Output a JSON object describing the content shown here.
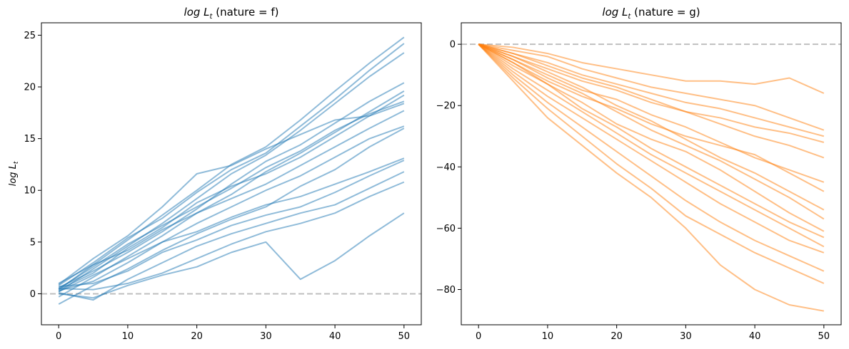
{
  "chart_data": [
    {
      "type": "line",
      "title_math": "log L",
      "title_sub": "t",
      "title_suffix": " (nature = f)",
      "ylabel_math": "log L",
      "ylabel_sub": "t",
      "xlim": [
        -2.5,
        52.5
      ],
      "ylim": [
        -3.0,
        26.2
      ],
      "xticks": [
        0,
        10,
        20,
        30,
        40,
        50
      ],
      "yticks": [
        0,
        5,
        10,
        15,
        20,
        25
      ],
      "reference_line_y": 0,
      "color": "#1f77b4",
      "series": [
        {
          "x": [
            0,
            5,
            10,
            15,
            20,
            25,
            30,
            35,
            40,
            45,
            50
          ],
          "values": [
            0.4,
            2.8,
            5.2,
            7.6,
            10.0,
            12.5,
            14.2,
            16.8,
            19.6,
            22.3,
            24.8
          ]
        },
        {
          "x": [
            0,
            5,
            10,
            15,
            20,
            25,
            30,
            35,
            40,
            45,
            50
          ],
          "values": [
            0.8,
            3.0,
            5.4,
            7.3,
            9.8,
            12.0,
            13.6,
            16.2,
            18.8,
            21.6,
            24.2
          ]
        },
        {
          "x": [
            0,
            5,
            10,
            15,
            20,
            25,
            30,
            35,
            40,
            45,
            50
          ],
          "values": [
            0.2,
            2.4,
            4.6,
            6.8,
            9.2,
            11.6,
            13.4,
            15.8,
            18.4,
            21.0,
            23.3
          ]
        },
        {
          "x": [
            0,
            5,
            10,
            15,
            20,
            25,
            30,
            35,
            40,
            45,
            50
          ],
          "values": [
            0.6,
            2.2,
            4.0,
            6.0,
            8.2,
            10.6,
            12.8,
            14.4,
            16.5,
            18.6,
            20.4
          ]
        },
        {
          "x": [
            0,
            5,
            10,
            15,
            20,
            25,
            30,
            35,
            40,
            45,
            50
          ],
          "values": [
            -0.3,
            1.6,
            3.6,
            5.6,
            7.8,
            9.6,
            11.8,
            13.6,
            15.6,
            17.6,
            19.6
          ]
        },
        {
          "x": [
            0,
            5,
            10,
            15,
            20,
            25,
            30,
            35,
            40,
            45,
            50
          ],
          "values": [
            0.5,
            2.6,
            4.8,
            6.6,
            8.4,
            10.2,
            12.2,
            13.8,
            15.8,
            17.4,
            18.6
          ]
        },
        {
          "x": [
            0,
            5,
            10,
            15,
            20,
            25,
            30,
            35,
            40,
            45,
            50
          ],
          "values": [
            1.0,
            2.8,
            4.2,
            6.2,
            7.8,
            9.2,
            10.6,
            12.4,
            14.2,
            16.0,
            17.7
          ]
        },
        {
          "x": [
            0,
            5,
            10,
            15,
            20,
            25,
            30,
            35,
            40,
            45,
            50
          ],
          "values": [
            0.3,
            1.2,
            3.0,
            5.0,
            6.8,
            8.4,
            10.0,
            11.4,
            13.2,
            15.0,
            16.2
          ]
        },
        {
          "x": [
            0,
            5,
            10,
            15,
            20,
            25,
            30,
            35,
            40,
            45,
            50
          ],
          "values": [
            -1.0,
            0.8,
            2.4,
            4.2,
            5.8,
            7.2,
            8.4,
            10.4,
            12.0,
            14.2,
            16.0
          ]
        },
        {
          "x": [
            0,
            5,
            10,
            15,
            20,
            25,
            30,
            35,
            40,
            45,
            50
          ],
          "values": [
            0.2,
            1.8,
            3.4,
            5.0,
            6.0,
            7.4,
            8.6,
            9.4,
            10.6,
            11.8,
            13.1
          ]
        },
        {
          "x": [
            0,
            5,
            10,
            15,
            20,
            25,
            30,
            35,
            40,
            45,
            50
          ],
          "values": [
            0.7,
            1.0,
            2.2,
            4.0,
            5.2,
            6.6,
            7.6,
            8.4,
            9.8,
            11.4,
            12.9
          ]
        },
        {
          "x": [
            0,
            5,
            10,
            15,
            20,
            25,
            30,
            35,
            40,
            45,
            50
          ],
          "values": [
            0.1,
            -0.6,
            1.4,
            3.0,
            4.6,
            5.8,
            6.8,
            7.8,
            8.6,
            10.2,
            11.8
          ]
        },
        {
          "x": [
            0,
            5,
            10,
            15,
            20,
            25,
            30,
            35,
            40,
            45,
            50
          ],
          "values": [
            0.5,
            0.4,
            1.0,
            2.0,
            3.4,
            4.8,
            6.0,
            6.8,
            7.8,
            9.4,
            10.8
          ]
        },
        {
          "x": [
            0,
            5,
            10,
            15,
            20,
            25,
            30,
            35,
            40,
            45,
            50
          ],
          "values": [
            0.0,
            -0.4,
            0.8,
            1.8,
            2.6,
            4.0,
            5.0,
            1.4,
            3.2,
            5.6,
            7.8
          ]
        },
        {
          "x": [
            0,
            5,
            10,
            15,
            20,
            25,
            30,
            35,
            40,
            45,
            50
          ],
          "values": [
            0.4,
            2.0,
            4.4,
            6.4,
            8.8,
            10.4,
            11.6,
            13.2,
            15.2,
            17.2,
            19.2
          ]
        },
        {
          "x": [
            0,
            5,
            10,
            15,
            20,
            25,
            30,
            35,
            40,
            45,
            50
          ],
          "values": [
            0.9,
            3.4,
            5.6,
            8.4,
            11.6,
            12.4,
            14.0,
            15.4,
            16.8,
            17.2,
            18.4
          ]
        }
      ]
    },
    {
      "type": "line",
      "title_math": "log L",
      "title_sub": "t",
      "title_suffix": " (nature = g)",
      "xlim": [
        -2.5,
        52.5
      ],
      "ylim": [
        -91.5,
        7.0
      ],
      "xticks": [
        0,
        10,
        20,
        30,
        40,
        50
      ],
      "yticks": [
        0,
        -20,
        -40,
        -60,
        -80
      ],
      "reference_line_y": 0,
      "color": "#ff7f0e",
      "series": [
        {
          "x": [
            0,
            5,
            10,
            15,
            20,
            25,
            30,
            35,
            40,
            45,
            50
          ],
          "values": [
            0,
            -1,
            -3,
            -6,
            -8,
            -10,
            -12,
            -12,
            -13,
            -11,
            -16
          ]
        },
        {
          "x": [
            0,
            5,
            10,
            15,
            20,
            25,
            30,
            35,
            40,
            45,
            50
          ],
          "values": [
            0,
            -2,
            -4,
            -8,
            -11,
            -14,
            -16,
            -18,
            -20,
            -24,
            -28
          ]
        },
        {
          "x": [
            0,
            5,
            10,
            15,
            20,
            25,
            30,
            35,
            40,
            45,
            50
          ],
          "values": [
            0,
            -3,
            -6,
            -10,
            -13,
            -16,
            -19,
            -21,
            -24,
            -27,
            -30
          ]
        },
        {
          "x": [
            0,
            5,
            10,
            15,
            20,
            25,
            30,
            35,
            40,
            45,
            50
          ],
          "values": [
            0,
            -4,
            -8,
            -12,
            -15,
            -19,
            -22,
            -24,
            -27,
            -29,
            -32
          ]
        },
        {
          "x": [
            0,
            5,
            10,
            15,
            20,
            25,
            30,
            35,
            40,
            45,
            50
          ],
          "values": [
            0,
            -3,
            -7,
            -11,
            -14,
            -18,
            -22,
            -26,
            -30,
            -33,
            -37
          ]
        },
        {
          "x": [
            0,
            5,
            10,
            15,
            20,
            25,
            30,
            35,
            40,
            45,
            50
          ],
          "values": [
            0,
            -5,
            -10,
            -15,
            -18,
            -23,
            -27,
            -32,
            -37,
            -41,
            -45
          ]
        },
        {
          "x": [
            0,
            5,
            10,
            15,
            20,
            25,
            30,
            35,
            40,
            45,
            50
          ],
          "values": [
            0,
            -6,
            -12,
            -17,
            -21,
            -26,
            -30,
            -33,
            -36,
            -42,
            -48
          ]
        },
        {
          "x": [
            0,
            5,
            10,
            15,
            20,
            25,
            30,
            35,
            40,
            45,
            50
          ],
          "values": [
            0,
            -4,
            -9,
            -14,
            -20,
            -25,
            -31,
            -37,
            -42,
            -48,
            -54
          ]
        },
        {
          "x": [
            0,
            5,
            10,
            15,
            20,
            25,
            30,
            35,
            40,
            45,
            50
          ],
          "values": [
            0,
            -5,
            -11,
            -16,
            -22,
            -28,
            -33,
            -38,
            -44,
            -50,
            -57
          ]
        },
        {
          "x": [
            0,
            5,
            10,
            15,
            20,
            25,
            30,
            35,
            40,
            45,
            50
          ],
          "values": [
            0,
            -7,
            -13,
            -19,
            -26,
            -31,
            -35,
            -41,
            -48,
            -55,
            -61
          ]
        },
        {
          "x": [
            0,
            5,
            10,
            15,
            20,
            25,
            30,
            35,
            40,
            45,
            50
          ],
          "values": [
            0,
            -6,
            -13,
            -21,
            -27,
            -34,
            -40,
            -46,
            -52,
            -58,
            -63
          ]
        },
        {
          "x": [
            0,
            5,
            10,
            15,
            20,
            25,
            30,
            35,
            40,
            45,
            50
          ],
          "values": [
            0,
            -8,
            -15,
            -22,
            -29,
            -36,
            -42,
            -48,
            -54,
            -60,
            -66
          ]
        },
        {
          "x": [
            0,
            5,
            10,
            15,
            20,
            25,
            30,
            35,
            40,
            45,
            50
          ],
          "values": [
            0,
            -9,
            -17,
            -24,
            -31,
            -38,
            -45,
            -52,
            -58,
            -64,
            -68
          ]
        },
        {
          "x": [
            0,
            5,
            10,
            15,
            20,
            25,
            30,
            35,
            40,
            45,
            50
          ],
          "values": [
            0,
            -10,
            -19,
            -27,
            -35,
            -43,
            -51,
            -58,
            -64,
            -69,
            -74
          ]
        },
        {
          "x": [
            0,
            5,
            10,
            15,
            20,
            25,
            30,
            35,
            40,
            45,
            50
          ],
          "values": [
            0,
            -11,
            -21,
            -30,
            -39,
            -47,
            -56,
            -62,
            -68,
            -73,
            -78
          ]
        },
        {
          "x": [
            0,
            5,
            10,
            15,
            20,
            25,
            30,
            35,
            40,
            45,
            50
          ],
          "values": [
            0,
            -12,
            -24,
            -33,
            -42,
            -50,
            -60,
            -72,
            -80,
            -85,
            -87
          ]
        }
      ]
    }
  ]
}
